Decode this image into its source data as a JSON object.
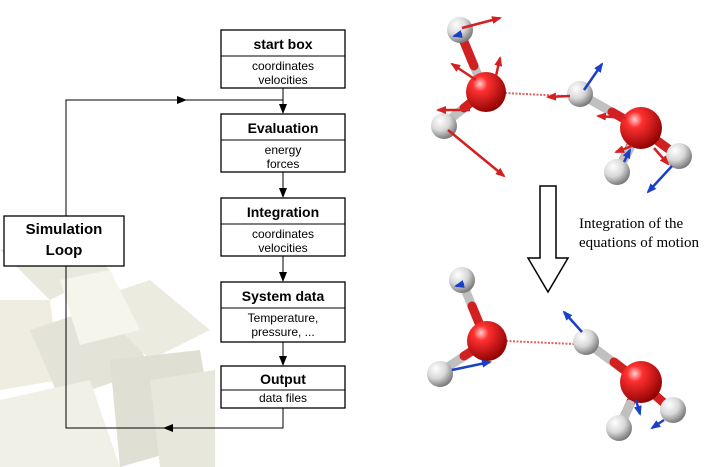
{
  "flowchart": {
    "boxes": [
      {
        "title": "start box",
        "lines": [
          "coordinates",
          "velocities"
        ]
      },
      {
        "title": "Evaluation",
        "lines": [
          "energy",
          "forces"
        ]
      },
      {
        "title": "Integration",
        "lines": [
          "coordinates",
          "velocities"
        ]
      },
      {
        "title": "System data",
        "lines": [
          "Temperature,",
          "pressure, ..."
        ]
      },
      {
        "title": "Output",
        "lines": [
          "data files"
        ]
      }
    ],
    "loop_label": [
      "Simulation",
      "Loop"
    ]
  },
  "right_panel": {
    "caption": [
      "Integration of the",
      "equations of motion"
    ]
  },
  "colors": {
    "oxygen": "#e01818",
    "hydrogen": "#e8e8e8",
    "force_arrow": "#d42020",
    "velocity_arrow": "#1a3fc8",
    "hbond": "#e06060"
  }
}
